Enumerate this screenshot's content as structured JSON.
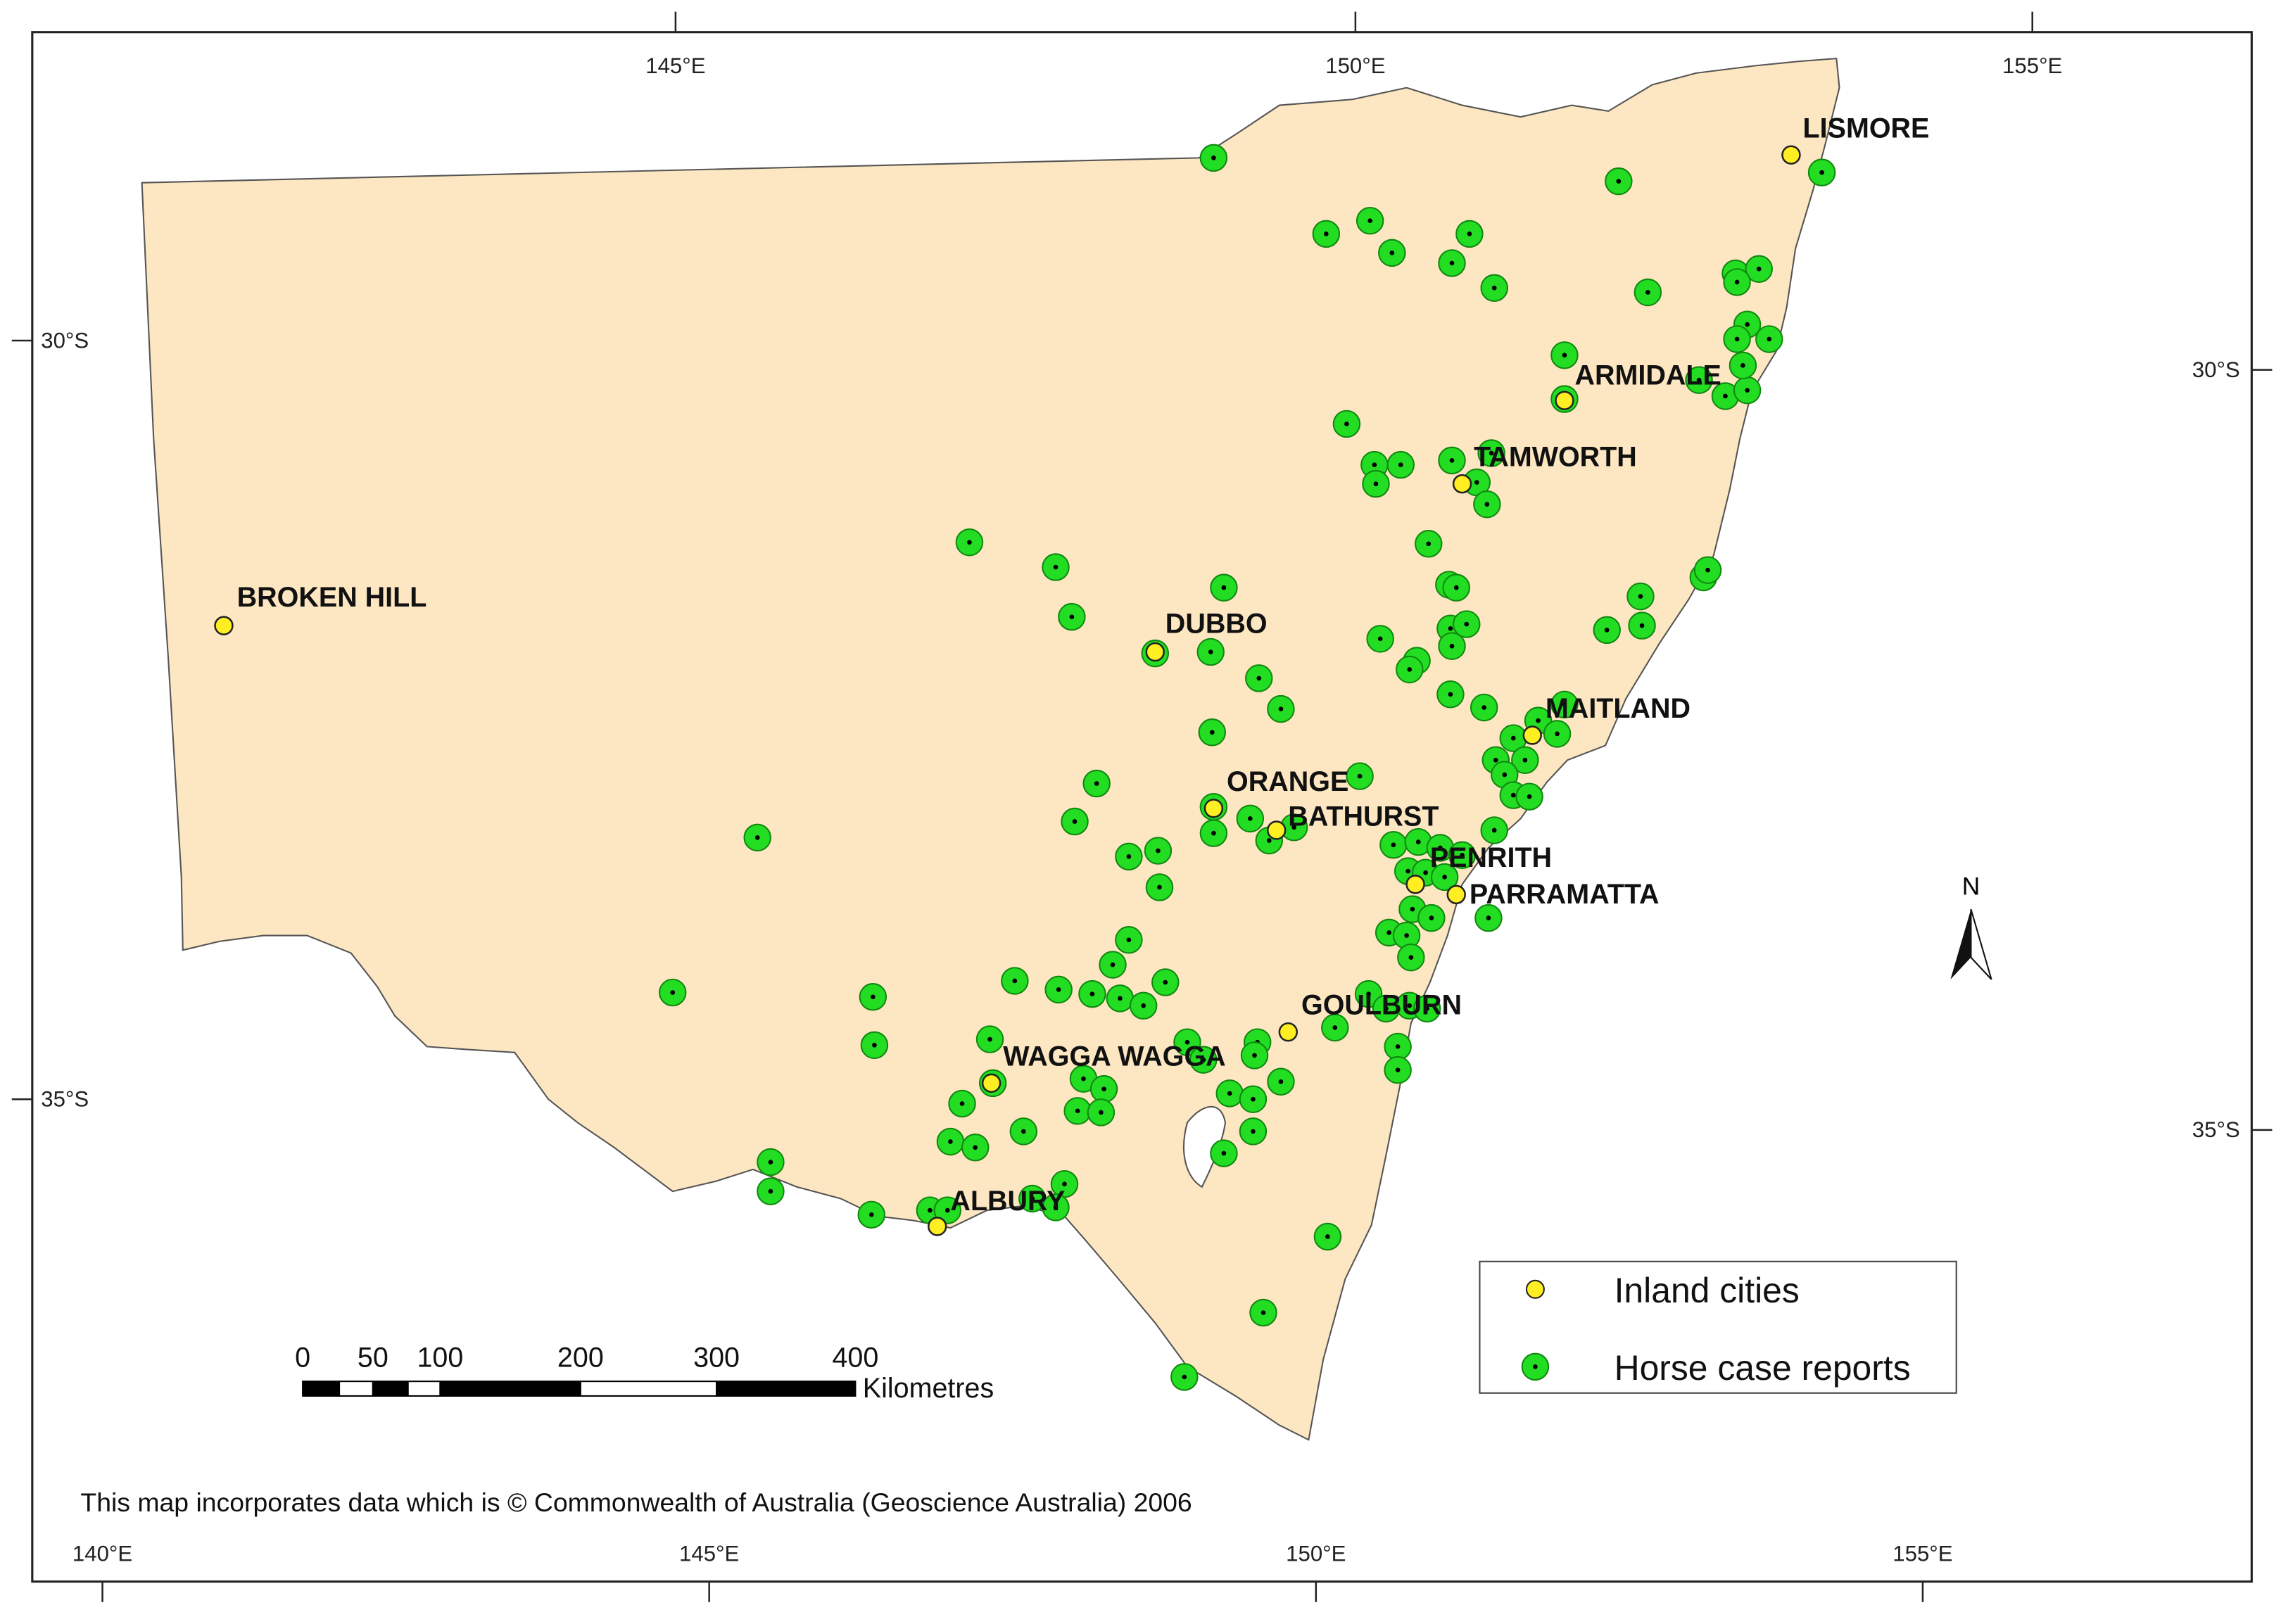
{
  "map": {
    "lat_labels_left": [
      "30°S",
      "35°S"
    ],
    "lat_labels_right": [
      "30°S",
      "35°S"
    ],
    "lon_labels_top": [
      "145°E",
      "150°E",
      "155°E"
    ],
    "lon_labels_bottom": [
      "140°E",
      "145°E",
      "150°E",
      "155°E"
    ],
    "cities": [
      "LISMORE",
      "ARMIDALE",
      "TAMWORTH",
      "BROKEN HILL",
      "DUBBO",
      "MAITLAND",
      "ORANGE",
      "BATHURST",
      "PENRITH",
      "PARRAMATTA",
      "GOULBURN",
      "WAGGA WAGGA",
      "ALBURY"
    ],
    "legend": [
      "Inland cities",
      "Horse case reports"
    ],
    "scale_labels": [
      "0",
      "50",
      "100",
      "200",
      "300",
      "400"
    ],
    "scale_unit": "Kilometres",
    "north": "N",
    "note": "This map incorporates data which is © Commonwealth of Australia (Geoscience Australia) 2006"
  }
}
